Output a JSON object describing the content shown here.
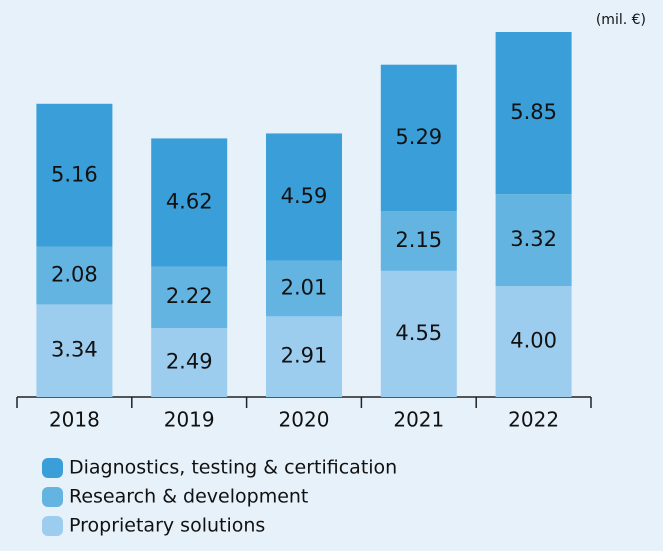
{
  "chart_data": {
    "type": "stacked_bar",
    "unit_label": "(mil. €)",
    "categories": [
      "2018",
      "2019",
      "2020",
      "2021",
      "2022"
    ],
    "series": [
      {
        "name": "Diagnostics, testing & certification",
        "color": "#3a9fd8",
        "values": [
          5.16,
          4.62,
          4.59,
          5.29,
          5.85
        ]
      },
      {
        "name": "Research & development",
        "color": "#64b4e1",
        "values": [
          2.08,
          2.22,
          2.01,
          2.15,
          3.32
        ]
      },
      {
        "name": "Proprietary solutions",
        "color": "#9dcdee",
        "values": [
          3.34,
          2.49,
          2.91,
          4.55,
          4
        ],
        "value_labels": [
          "3.34",
          "2.49",
          "2.91",
          "4.55",
          "4.00"
        ]
      }
    ]
  }
}
